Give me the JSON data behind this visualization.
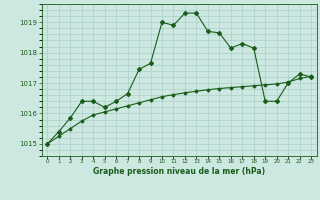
{
  "title": "Graphe pression niveau de la mer (hPa)",
  "background_color": "#cce8e0",
  "grid_color": "#aacfc8",
  "line_color": "#1a5c1a",
  "x_labels": [
    "0",
    "1",
    "2",
    "3",
    "4",
    "5",
    "6",
    "7",
    "8",
    "9",
    "10",
    "11",
    "12",
    "13",
    "14",
    "15",
    "16",
    "17",
    "18",
    "19",
    "20",
    "21",
    "22",
    "23"
  ],
  "yticks": [
    1015,
    1016,
    1017,
    1018,
    1019
  ],
  "ylim": [
    1014.6,
    1019.6
  ],
  "xlim": [
    -0.5,
    23.5
  ],
  "series1_x": [
    0,
    1,
    2,
    3,
    4,
    5,
    6,
    7,
    8,
    9,
    10,
    11,
    12,
    13,
    14,
    15,
    16,
    17,
    18,
    19,
    20,
    21,
    22,
    23
  ],
  "series1_y": [
    1015.0,
    1015.4,
    1015.85,
    1016.4,
    1016.4,
    1016.2,
    1016.4,
    1016.65,
    1017.45,
    1017.65,
    1019.0,
    1018.9,
    1019.3,
    1019.3,
    1018.7,
    1018.65,
    1018.15,
    1018.3,
    1018.15,
    1016.4,
    1016.4,
    1017.0,
    1017.3,
    1017.2
  ],
  "series2_x": [
    0,
    1,
    2,
    3,
    4,
    5,
    6,
    7,
    8,
    9,
    10,
    11,
    12,
    13,
    14,
    15,
    16,
    17,
    18,
    19,
    20,
    21,
    22,
    23
  ],
  "series2_y": [
    1015.0,
    1015.25,
    1015.5,
    1015.75,
    1015.95,
    1016.05,
    1016.15,
    1016.25,
    1016.35,
    1016.45,
    1016.55,
    1016.62,
    1016.68,
    1016.73,
    1016.78,
    1016.82,
    1016.85,
    1016.88,
    1016.91,
    1016.94,
    1016.97,
    1017.03,
    1017.15,
    1017.22
  ]
}
